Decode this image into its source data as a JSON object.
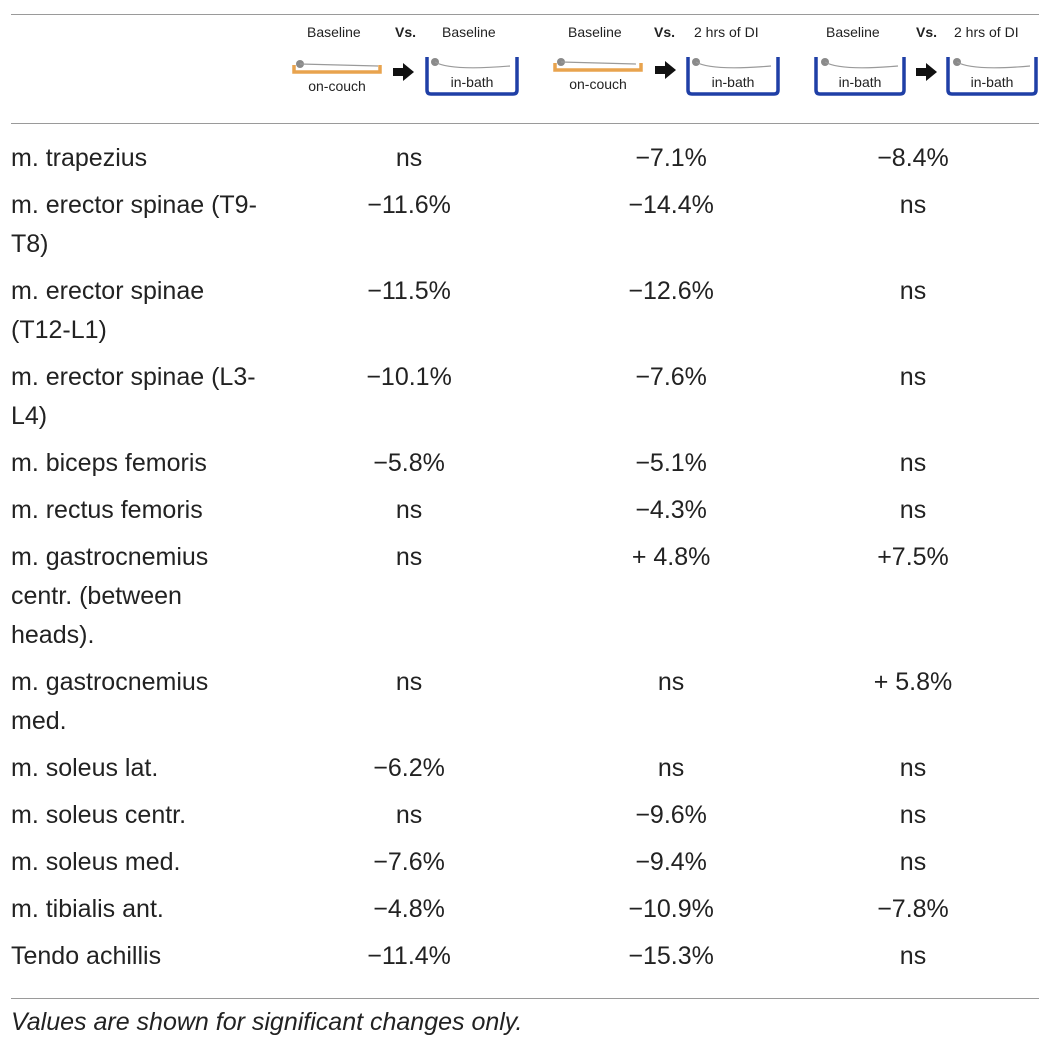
{
  "header": {
    "comparisons": [
      {
        "left_label": "Baseline",
        "vs": "Vs.",
        "right_label": "Baseline",
        "left_condition": "on-couch",
        "right_condition": "in-bath"
      },
      {
        "left_label": "Baseline",
        "vs": "Vs.",
        "right_label": "2 hrs of DI",
        "left_condition": "on-couch",
        "right_condition": "in-bath"
      },
      {
        "left_label": "Baseline",
        "vs": "Vs.",
        "right_label": "2 hrs of DI",
        "left_condition": "in-bath",
        "right_condition": "in-bath"
      }
    ],
    "colors": {
      "couch": "#e8a34e",
      "bath": "#1f3fa6",
      "arrow": "#111111"
    }
  },
  "rows": [
    {
      "muscle": "m. trapezius",
      "v1": "ns",
      "v2": "−7.1%",
      "v3": "−8.4%"
    },
    {
      "muscle": "m. erector spinae (T9-T8)",
      "v1": "−11.6%",
      "v2": "−14.4%",
      "v3": "ns"
    },
    {
      "muscle": "m. erector spinae (T12-L1)",
      "v1": "−11.5%",
      "v2": "−12.6%",
      "v3": "ns"
    },
    {
      "muscle": "m. erector spinae (L3-L4)",
      "v1": "−10.1%",
      "v2": "−7.6%",
      "v3": "ns"
    },
    {
      "muscle": "m. biceps femoris",
      "v1": "−5.8%",
      "v2": "−5.1%",
      "v3": "ns"
    },
    {
      "muscle": "m. rectus femoris",
      "v1": "ns",
      "v2": "−4.3%",
      "v3": "ns"
    },
    {
      "muscle": "m. gastrocnemius centr. (between heads).",
      "v1": "ns",
      "v2": "+ 4.8%",
      "v3": "+7.5%"
    },
    {
      "muscle": "m. gastrocnemius med.",
      "v1": "ns",
      "v2": "ns",
      "v3": "+ 5.8%"
    },
    {
      "muscle": "m. soleus lat.",
      "v1": "−6.2%",
      "v2": "ns",
      "v3": "ns"
    },
    {
      "muscle": "m. soleus centr.",
      "v1": "ns",
      "v2": "−9.6%",
      "v3": "ns"
    },
    {
      "muscle": "m. soleus med.",
      "v1": "−7.6%",
      "v2": "−9.4%",
      "v3": "ns"
    },
    {
      "muscle": "m. tibialis ant.",
      "v1": "−4.8%",
      "v2": "−10.9%",
      "v3": "−7.8%"
    },
    {
      "muscle": "Tendo achillis",
      "v1": "−11.4%",
      "v2": "−15.3%",
      "v3": "ns"
    }
  ],
  "footnote": "Values are shown for significant changes only."
}
